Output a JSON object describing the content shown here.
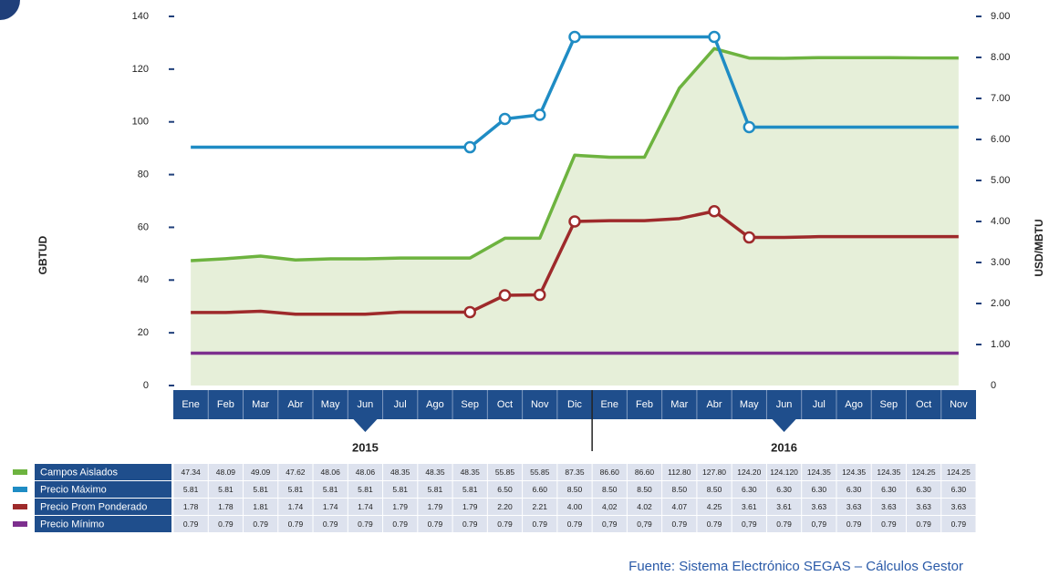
{
  "chart_data": {
    "type": "line",
    "categories": [
      "Ene",
      "Feb",
      "Mar",
      "Abr",
      "May",
      "Jun",
      "Jul",
      "Ago",
      "Sep",
      "Oct",
      "Nov",
      "Dic",
      "Ene",
      "Feb",
      "Mar",
      "Abr",
      "May",
      "Jun",
      "Jul",
      "Ago",
      "Sep",
      "Oct",
      "Nov"
    ],
    "years": [
      "2015",
      "2016"
    ],
    "ylabel": "GBTUD",
    "y2label": "USD/MBTU",
    "ylim": [
      0,
      140
    ],
    "yticks": [
      0,
      20,
      40,
      60,
      80,
      100,
      120,
      140
    ],
    "y2lim": [
      0,
      9
    ],
    "y2ticks": [
      0,
      {
        "value": 1,
        "label": "1.00"
      },
      {
        "value": 2,
        "label": "2.00"
      },
      {
        "value": 3,
        "label": "3.00"
      },
      {
        "value": 4,
        "label": "4.00"
      },
      {
        "value": 5,
        "label": "5.00"
      },
      {
        "value": 6,
        "label": "6.00"
      },
      {
        "value": 7,
        "label": "7.00"
      },
      {
        "value": 8,
        "label": "8.00"
      },
      {
        "value": 9,
        "label": "9.00"
      }
    ],
    "series": [
      {
        "name": "Campos Aislados",
        "color": "#6db33f",
        "fill": "#e6efd9",
        "area": true,
        "values": [
          47.34,
          48.09,
          49.09,
          47.62,
          48.06,
          48.06,
          48.35,
          48.35,
          48.35,
          55.85,
          55.85,
          87.35,
          86.6,
          86.6,
          112.8,
          127.8,
          124.2,
          124.12,
          124.35,
          124.35,
          124.35,
          124.25,
          124.25
        ],
        "value_labels": [
          "47.34",
          "48.09",
          "49.09",
          "47.62",
          "48.06",
          "48.06",
          "48.35",
          "48.35",
          "48.35",
          "55.85",
          "55.85",
          "87.35",
          "86.60",
          "86.60",
          "112.80",
          "127.80",
          "124.20",
          "124.120",
          "124.35",
          "124.35",
          "124.35",
          "124.25",
          "124.25"
        ]
      },
      {
        "name": "Precio Máximo",
        "color": "#1f8cc4",
        "axis": "y2",
        "values": [
          5.81,
          5.81,
          5.81,
          5.81,
          5.81,
          5.81,
          5.81,
          5.81,
          5.81,
          6.5,
          6.6,
          8.5,
          8.5,
          8.5,
          8.5,
          8.5,
          6.3,
          6.3,
          6.3,
          6.3,
          6.3,
          6.3,
          6.3
        ],
        "value_labels": [
          "5.81",
          "5.81",
          "5.81",
          "5.81",
          "5.81",
          "5.81",
          "5.81",
          "5.81",
          "5.81",
          "6.50",
          "6.60",
          "8.50",
          "8.50",
          "8.50",
          "8.50",
          "8.50",
          "6.30",
          "6.30",
          "6.30",
          "6.30",
          "6.30",
          "6.30",
          "6.30"
        ]
      },
      {
        "name": "Precio Prom Ponderado",
        "color": "#9e2a2b",
        "axis": "y2",
        "values": [
          1.78,
          1.78,
          1.81,
          1.74,
          1.74,
          1.74,
          1.79,
          1.79,
          1.79,
          2.2,
          2.21,
          4.0,
          4.02,
          4.02,
          4.07,
          4.25,
          3.61,
          3.61,
          3.63,
          3.63,
          3.63,
          3.63,
          3.63
        ],
        "value_labels": [
          "1.78",
          "1.78",
          "1.81",
          "1.74",
          "1.74",
          "1.74",
          "1.79",
          "1.79",
          "1.79",
          "2.20",
          "2.21",
          "4.00",
          "4,02",
          "4.02",
          "4.07",
          "4.25",
          "3.61",
          "3.61",
          "3.63",
          "3.63",
          "3.63",
          "3.63",
          "3.63"
        ]
      },
      {
        "name": "Precio Mínimo",
        "color": "#7d2f8e",
        "axis": "y2",
        "values": [
          0.79,
          0.79,
          0.79,
          0.79,
          0.79,
          0.79,
          0.79,
          0.79,
          0.79,
          0.79,
          0.79,
          0.79,
          0.79,
          0.79,
          0.79,
          0.79,
          0.79,
          0.79,
          0.79,
          0.79,
          0.79,
          0.79,
          0.79
        ],
        "value_labels": [
          "0.79",
          "0.79",
          "0.79",
          "0.79",
          "0.79",
          "0.79",
          "0.79",
          "0.79",
          "0.79",
          "0.79",
          "0.79",
          "0.79",
          "0,79",
          "0,79",
          "0.79",
          "0.79",
          "0,79",
          "0.79",
          "0,79",
          "0.79",
          "0.79",
          "0.79",
          "0.79"
        ]
      }
    ],
    "source": "Fuente: Sistema Electrónico SEGAS – Cálculos Gestor"
  }
}
